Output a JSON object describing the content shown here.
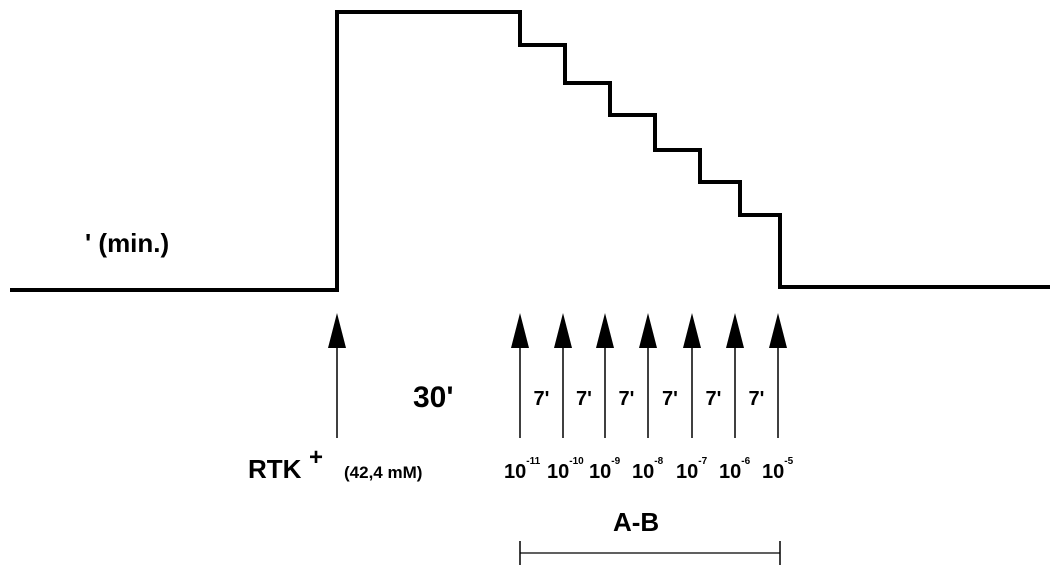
{
  "diagram": {
    "time_unit_label": "' (min.)",
    "baseline_interval_label": "30'",
    "stimulus": {
      "label": "RTK",
      "superscript": "+",
      "concentration": "(42,4 mM)"
    },
    "step_interval_label": "7'",
    "step_intervals": [
      "7'",
      "7'",
      "7'",
      "7'",
      "7'",
      "7'"
    ],
    "doses": [
      {
        "base": "10",
        "exp": "-11"
      },
      {
        "base": "10",
        "exp": "-10"
      },
      {
        "base": "10",
        "exp": "-9"
      },
      {
        "base": "10",
        "exp": "-8"
      },
      {
        "base": "10",
        "exp": "-7"
      },
      {
        "base": "10",
        "exp": "-6"
      },
      {
        "base": "10",
        "exp": "-5"
      }
    ],
    "range_label": "A-B",
    "trace_color": "#000000"
  }
}
